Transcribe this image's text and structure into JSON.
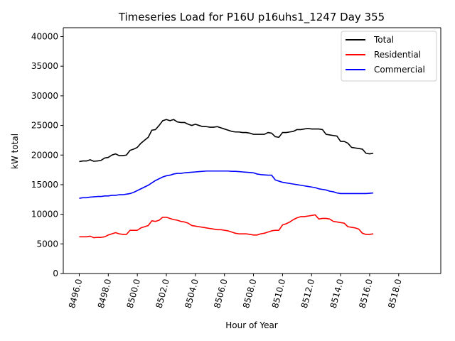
{
  "chart_data": {
    "type": "line",
    "title": "Timeseries Load for P16U p16uhs1_1247  Day 355",
    "xlabel": "Hour of Year",
    "ylabel": "kW total",
    "xlim": [
      8494.9,
      8520.9
    ],
    "ylim": [
      0,
      41500
    ],
    "xticks": [
      8496.0,
      8498.0,
      8500.0,
      8502.0,
      8504.0,
      8506.0,
      8508.0,
      8510.0,
      8512.0,
      8514.0,
      8516.0,
      8518.0
    ],
    "xtick_labels": [
      "8496.0",
      "8498.0",
      "8500.0",
      "8502.0",
      "8504.0",
      "8506.0",
      "8508.0",
      "8510.0",
      "8512.0",
      "8514.0",
      "8516.0",
      "8518.0"
    ],
    "yticks": [
      0,
      5000,
      10000,
      15000,
      20000,
      25000,
      30000,
      35000,
      40000
    ],
    "ytick_labels": [
      "0",
      "5000",
      "10000",
      "15000",
      "20000",
      "25000",
      "30000",
      "35000",
      "40000"
    ],
    "legend_position": "top-right",
    "grid": false,
    "x_start": 8496.0,
    "x_step": 0.25,
    "series": [
      {
        "name": "Total",
        "color": "#000000",
        "values": [
          18900,
          19000,
          19000,
          19200,
          18950,
          19000,
          19100,
          19500,
          19600,
          20000,
          20200,
          19900,
          19900,
          20000,
          20800,
          21000,
          21300,
          22000,
          22500,
          23000,
          24200,
          24300,
          25000,
          25800,
          26000,
          25800,
          26000,
          25600,
          25500,
          25500,
          25200,
          25000,
          25200,
          25000,
          24800,
          24800,
          24700,
          24700,
          24800,
          24600,
          24400,
          24200,
          24000,
          23900,
          23900,
          23800,
          23800,
          23700,
          23500,
          23500,
          23500,
          23500,
          23800,
          23700,
          23100,
          23000,
          23800,
          23800,
          23900,
          24000,
          24300,
          24300,
          24400,
          24500,
          24400,
          24400,
          24400,
          24300,
          23500,
          23400,
          23300,
          23200,
          22300,
          22300,
          22000,
          21300,
          21200,
          21100,
          21000,
          20300,
          20200,
          20300
        ]
      },
      {
        "name": "Residential",
        "color": "#ff0000",
        "values": [
          6200,
          6200,
          6200,
          6300,
          6050,
          6100,
          6100,
          6200,
          6500,
          6700,
          6900,
          6700,
          6600,
          6600,
          7300,
          7300,
          7300,
          7700,
          7900,
          8100,
          8900,
          8800,
          9000,
          9500,
          9500,
          9300,
          9100,
          9000,
          8800,
          8700,
          8500,
          8100,
          8000,
          7900,
          7800,
          7700,
          7600,
          7500,
          7400,
          7400,
          7300,
          7200,
          7000,
          6800,
          6700,
          6700,
          6700,
          6600,
          6500,
          6500,
          6700,
          6800,
          7000,
          7200,
          7300,
          7300,
          8200,
          8400,
          8700,
          9100,
          9400,
          9600,
          9600,
          9700,
          9800,
          9900,
          9200,
          9300,
          9300,
          9200,
          8800,
          8700,
          8600,
          8500,
          7900,
          7800,
          7700,
          7500,
          6800,
          6600,
          6600,
          6700
        ]
      },
      {
        "name": "Commercial",
        "color": "#0000ff",
        "values": [
          12700,
          12800,
          12800,
          12900,
          12950,
          13000,
          13000,
          13100,
          13100,
          13200,
          13200,
          13300,
          13300,
          13400,
          13500,
          13700,
          14000,
          14300,
          14600,
          14900,
          15300,
          15700,
          16000,
          16300,
          16500,
          16600,
          16800,
          16900,
          16900,
          17000,
          17050,
          17100,
          17150,
          17200,
          17250,
          17300,
          17300,
          17300,
          17300,
          17300,
          17300,
          17300,
          17250,
          17250,
          17200,
          17150,
          17100,
          17050,
          17000,
          16800,
          16700,
          16650,
          16600,
          16600,
          15800,
          15600,
          15400,
          15300,
          15200,
          15100,
          15000,
          14900,
          14800,
          14700,
          14600,
          14500,
          14300,
          14200,
          14100,
          13900,
          13800,
          13600,
          13500,
          13500,
          13500,
          13500,
          13500,
          13500,
          13500,
          13500,
          13550,
          13600
        ]
      }
    ]
  }
}
